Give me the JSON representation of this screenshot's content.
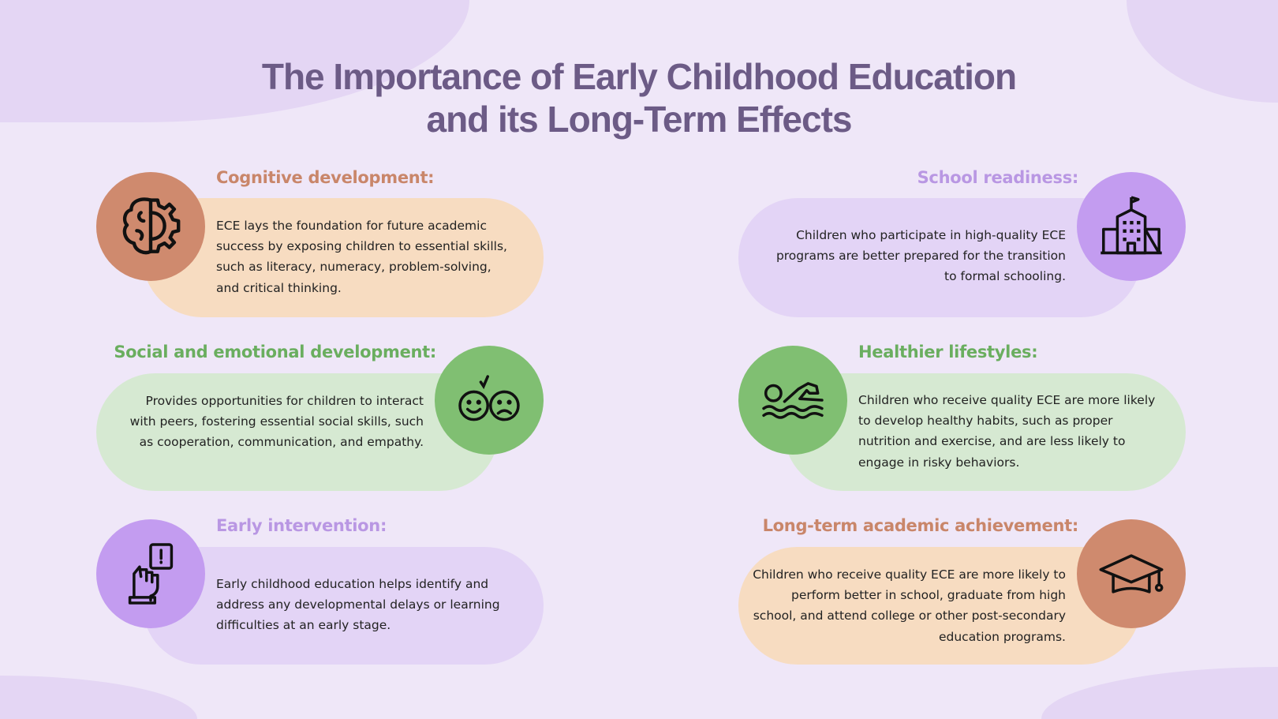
{
  "title_line1": "The Importance of Early Childhood Education",
  "title_line2": "and its Long-Term Effects",
  "colors": {
    "background": "#efe7f8",
    "title": "#6c5b86",
    "orange": "#cf8a6e",
    "green": "#80bf72",
    "purple": "#c39cf0"
  },
  "cards": [
    {
      "heading": "Cognitive development:",
      "body": "ECE lays the foundation for future academic success by exposing children to essential skills, such as literacy, numeracy, problem-solving, and critical thinking.",
      "icon": "brain-gear-icon"
    },
    {
      "heading": "Social and emotional development:",
      "body": "Provides opportunities for children to interact with peers, fostering essential social skills, such as cooperation, communication, and empathy.",
      "icon": "happy-sad-faces-icon"
    },
    {
      "heading": "Early intervention:",
      "body": "Early childhood education helps identify and address any developmental delays or learning difficulties at an early stage.",
      "icon": "hand-alert-icon"
    },
    {
      "heading": "School readiness:",
      "body": "Children who participate in high-quality ECE programs are better prepared for the transition to formal schooling.",
      "icon": "school-building-icon"
    },
    {
      "heading": "Healthier lifestyles:",
      "body": "Children who receive quality ECE are more likely to develop healthy habits, such as proper nutrition and exercise, and are less likely to engage in risky behaviors.",
      "icon": "swimmer-icon"
    },
    {
      "heading": "Long-term academic achievement:",
      "body": "Children who receive quality ECE are more likely to perform better in school, graduate from high school, and attend college or other post-secondary education programs.",
      "icon": "graduation-cap-icon"
    }
  ]
}
